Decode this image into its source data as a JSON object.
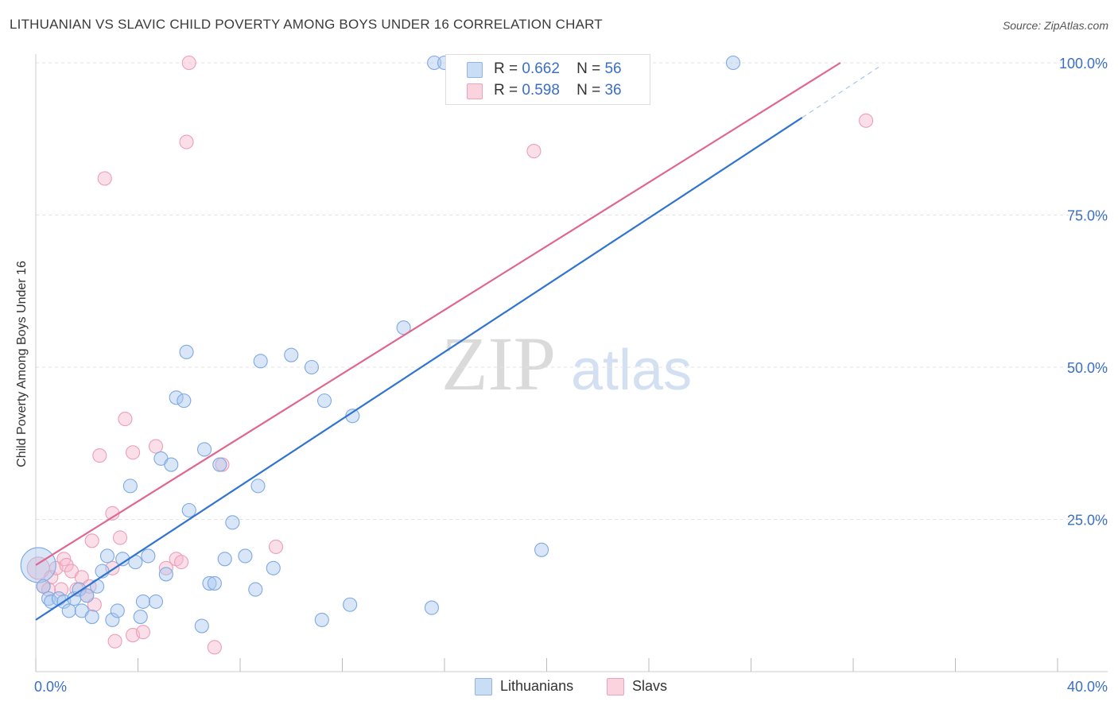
{
  "header": {
    "title": "LITHUANIAN VS SLAVIC CHILD POVERTY AMONG BOYS UNDER 16 CORRELATION CHART",
    "source": "Source: ZipAtlas.com"
  },
  "watermark": {
    "zip": "ZIP",
    "atlas": "atlas"
  },
  "legend": {
    "rows": [
      {
        "r_label": "R =",
        "r_value": "0.662",
        "n_label": "N =",
        "n_value": "56",
        "color": "#a8c8f0"
      },
      {
        "r_label": "R =",
        "r_value": "0.598",
        "n_label": "N =",
        "n_value": "36",
        "color": "#f7b9cc"
      }
    ]
  },
  "bottom_legend": [
    {
      "label": "Lithuanians",
      "color": "#a8c8f0"
    },
    {
      "label": "Slavs",
      "color": "#f7b9cc"
    }
  ],
  "colors": {
    "blue_fill": "#a8c8f0",
    "blue_line": "#2f74d0",
    "pink_fill": "#f7b9cc",
    "pink_line": "#e0668f",
    "tick_label": "#3a6fc4",
    "grid": "#e3e3e3"
  },
  "chart_data": {
    "type": "scatter",
    "title": "LITHUANIAN VS SLAVIC CHILD POVERTY AMONG BOYS UNDER 16 CORRELATION CHART",
    "xlabel": "",
    "ylabel": "Child Poverty Among Boys Under 16",
    "xlim": [
      0,
      40
    ],
    "ylim": [
      0,
      100
    ],
    "x_tick_labels": [
      {
        "value": 0,
        "label": "0.0%"
      },
      {
        "value": 40,
        "label": "40.0%"
      }
    ],
    "y_tick_labels": [
      {
        "value": 25,
        "label": "25.0%"
      },
      {
        "value": 50,
        "label": "50.0%"
      },
      {
        "value": 75,
        "label": "75.0%"
      },
      {
        "value": 100,
        "label": "100.0%"
      }
    ],
    "grid": true,
    "legend_position": "top-center",
    "series": [
      {
        "name": "Lithuanians",
        "r": 0.662,
        "n": 56,
        "trend": {
          "x0": 0,
          "y0": 8.5,
          "x1": 30,
          "y1": 91,
          "dash_to_x": 33,
          "dash_to_y": 99.3
        },
        "points": [
          [
            0.1,
            17.5,
            3
          ],
          [
            0.3,
            14.0,
            1
          ],
          [
            0.5,
            12.0,
            1
          ],
          [
            0.6,
            11.5,
            1
          ],
          [
            0.9,
            12.0,
            1
          ],
          [
            1.1,
            11.5,
            1
          ],
          [
            1.3,
            10.0,
            1
          ],
          [
            1.5,
            12.0,
            1
          ],
          [
            1.7,
            13.5,
            1
          ],
          [
            1.8,
            10.0,
            1
          ],
          [
            2.0,
            12.5,
            1
          ],
          [
            2.2,
            9.0,
            1
          ],
          [
            2.4,
            14.0,
            1
          ],
          [
            2.6,
            16.5,
            1
          ],
          [
            2.8,
            19.0,
            1
          ],
          [
            3.0,
            8.5,
            1
          ],
          [
            3.2,
            10.0,
            1
          ],
          [
            3.4,
            18.5,
            1
          ],
          [
            3.7,
            30.5,
            1
          ],
          [
            3.9,
            18.0,
            1
          ],
          [
            4.1,
            9.0,
            1
          ],
          [
            4.2,
            11.5,
            1
          ],
          [
            4.4,
            19.0,
            1
          ],
          [
            4.7,
            11.5,
            1
          ],
          [
            4.9,
            35.0,
            1
          ],
          [
            5.1,
            16.0,
            1
          ],
          [
            5.3,
            34.0,
            1
          ],
          [
            5.5,
            45.0,
            1
          ],
          [
            5.8,
            44.5,
            1
          ],
          [
            5.9,
            52.5,
            1
          ],
          [
            6.0,
            26.5,
            1
          ],
          [
            6.5,
            7.5,
            1
          ],
          [
            6.6,
            36.5,
            1
          ],
          [
            6.8,
            14.5,
            1
          ],
          [
            7.0,
            14.5,
            1
          ],
          [
            7.2,
            34.0,
            1
          ],
          [
            7.4,
            18.5,
            1
          ],
          [
            7.7,
            24.5,
            1
          ],
          [
            8.2,
            19.0,
            1
          ],
          [
            8.6,
            13.5,
            1
          ],
          [
            8.7,
            30.5,
            1
          ],
          [
            8.8,
            51.0,
            1
          ],
          [
            9.3,
            17.0,
            1
          ],
          [
            10.0,
            52.0,
            1
          ],
          [
            10.8,
            50.0,
            1
          ],
          [
            11.2,
            8.5,
            1
          ],
          [
            11.3,
            44.5,
            1
          ],
          [
            12.3,
            11.0,
            1
          ],
          [
            12.4,
            42.0,
            1
          ],
          [
            14.4,
            56.5,
            1
          ],
          [
            15.5,
            10.5,
            1
          ],
          [
            15.6,
            100,
            1
          ],
          [
            16.0,
            100,
            1
          ],
          [
            19.8,
            20.0,
            1
          ],
          [
            27.3,
            100,
            1
          ]
        ]
      },
      {
        "name": "Slavs",
        "r": 0.598,
        "n": 36,
        "trend": {
          "x0": 0,
          "y0": 17.5,
          "x1": 31.5,
          "y1": 100
        },
        "points": [
          [
            0.1,
            17.0,
            2
          ],
          [
            0.3,
            14.0,
            1
          ],
          [
            0.6,
            15.5,
            1
          ],
          [
            0.8,
            17.0,
            1
          ],
          [
            1.0,
            13.5,
            1
          ],
          [
            1.1,
            18.5,
            1
          ],
          [
            1.2,
            17.5,
            1
          ],
          [
            1.4,
            16.5,
            1
          ],
          [
            1.6,
            13.5,
            1
          ],
          [
            1.8,
            15.5,
            1
          ],
          [
            2.0,
            12.5,
            1
          ],
          [
            2.1,
            14.0,
            1
          ],
          [
            2.2,
            21.5,
            1
          ],
          [
            2.3,
            11.0,
            1
          ],
          [
            2.5,
            35.5,
            1
          ],
          [
            2.7,
            81.0,
            1
          ],
          [
            3.0,
            17.0,
            1
          ],
          [
            3.0,
            26.0,
            1
          ],
          [
            3.1,
            5.0,
            1
          ],
          [
            3.3,
            22.0,
            1
          ],
          [
            3.5,
            41.5,
            1
          ],
          [
            3.8,
            36.0,
            1
          ],
          [
            3.8,
            6.0,
            1
          ],
          [
            4.2,
            6.5,
            1
          ],
          [
            4.7,
            37.0,
            1
          ],
          [
            5.1,
            17.0,
            1
          ],
          [
            5.5,
            18.5,
            1
          ],
          [
            5.7,
            18.0,
            1
          ],
          [
            5.9,
            87.0,
            1
          ],
          [
            6.0,
            100,
            1
          ],
          [
            7.0,
            4.0,
            1
          ],
          [
            7.3,
            34.0,
            1
          ],
          [
            9.4,
            20.5,
            1
          ],
          [
            19.5,
            85.5,
            1
          ],
          [
            32.5,
            90.5,
            1
          ],
          [
            0.5,
            13.5,
            1
          ]
        ]
      }
    ]
  }
}
